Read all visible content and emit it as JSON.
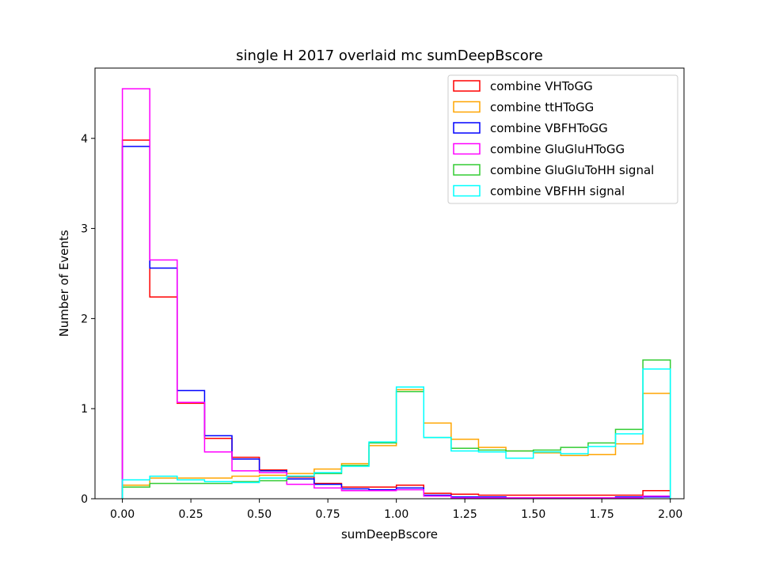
{
  "chart_data": {
    "type": "histogram-step",
    "title": "single H 2017 overlaid mc sumDeepBscore",
    "xlabel": "sumDeepBscore",
    "ylabel": "Number of Events",
    "xlim": [
      -0.1,
      2.05
    ],
    "ylim": [
      0,
      4.78
    ],
    "xticks": [
      0.0,
      0.25,
      0.5,
      0.75,
      1.0,
      1.25,
      1.5,
      1.75,
      2.0
    ],
    "xtick_labels": [
      "0.00",
      "0.25",
      "0.50",
      "0.75",
      "1.00",
      "1.25",
      "1.50",
      "1.75",
      "2.00"
    ],
    "yticks": [
      0,
      1,
      2,
      3,
      4
    ],
    "ytick_labels": [
      "0",
      "1",
      "2",
      "3",
      "4"
    ],
    "bin_edges": [
      0.0,
      0.1,
      0.2,
      0.3,
      0.4,
      0.5,
      0.6,
      0.7,
      0.8,
      0.9,
      1.0,
      1.1,
      1.2,
      1.3,
      1.4,
      1.5,
      1.6,
      1.7,
      1.8,
      1.9,
      2.0
    ],
    "legend_position": "upper-right",
    "series": [
      {
        "name": "combine VHToGG",
        "color": "#ff0000",
        "values": [
          3.98,
          2.24,
          1.06,
          0.67,
          0.46,
          0.32,
          0.24,
          0.17,
          0.13,
          0.13,
          0.15,
          0.06,
          0.05,
          0.04,
          0.04,
          0.04,
          0.04,
          0.04,
          0.04,
          0.09
        ]
      },
      {
        "name": "combine ttHToGG",
        "color": "#ffa500",
        "values": [
          0.15,
          0.23,
          0.23,
          0.23,
          0.25,
          0.26,
          0.28,
          0.33,
          0.39,
          0.59,
          1.21,
          0.84,
          0.66,
          0.57,
          0.53,
          0.51,
          0.48,
          0.49,
          0.61,
          1.17
        ]
      },
      {
        "name": "combine VBFHToGG",
        "color": "#0000ff",
        "values": [
          3.91,
          2.56,
          1.2,
          0.7,
          0.44,
          0.31,
          0.22,
          0.16,
          0.11,
          0.1,
          0.12,
          0.04,
          0.02,
          0.02,
          0.01,
          0.01,
          0.01,
          0.01,
          0.02,
          0.02
        ]
      },
      {
        "name": "combine GluGluHToGG",
        "color": "#ff00ff",
        "values": [
          4.55,
          2.65,
          1.07,
          0.52,
          0.31,
          0.29,
          0.16,
          0.12,
          0.09,
          0.09,
          0.1,
          0.03,
          0.01,
          0.01,
          0.01,
          0.01,
          0.01,
          0.01,
          0.01,
          0.03
        ]
      },
      {
        "name": "combine GluGluToHH signal",
        "color": "#33cc33",
        "values": [
          0.13,
          0.17,
          0.17,
          0.17,
          0.19,
          0.2,
          0.25,
          0.28,
          0.37,
          0.62,
          1.19,
          0.68,
          0.56,
          0.54,
          0.53,
          0.54,
          0.57,
          0.62,
          0.77,
          1.54
        ]
      },
      {
        "name": "combine VBFHH signal",
        "color": "#00ffff",
        "values": [
          0.21,
          0.25,
          0.21,
          0.19,
          0.18,
          0.23,
          0.25,
          0.29,
          0.36,
          0.63,
          1.24,
          0.68,
          0.53,
          0.52,
          0.45,
          0.52,
          0.5,
          0.58,
          0.72,
          1.44
        ]
      }
    ]
  }
}
